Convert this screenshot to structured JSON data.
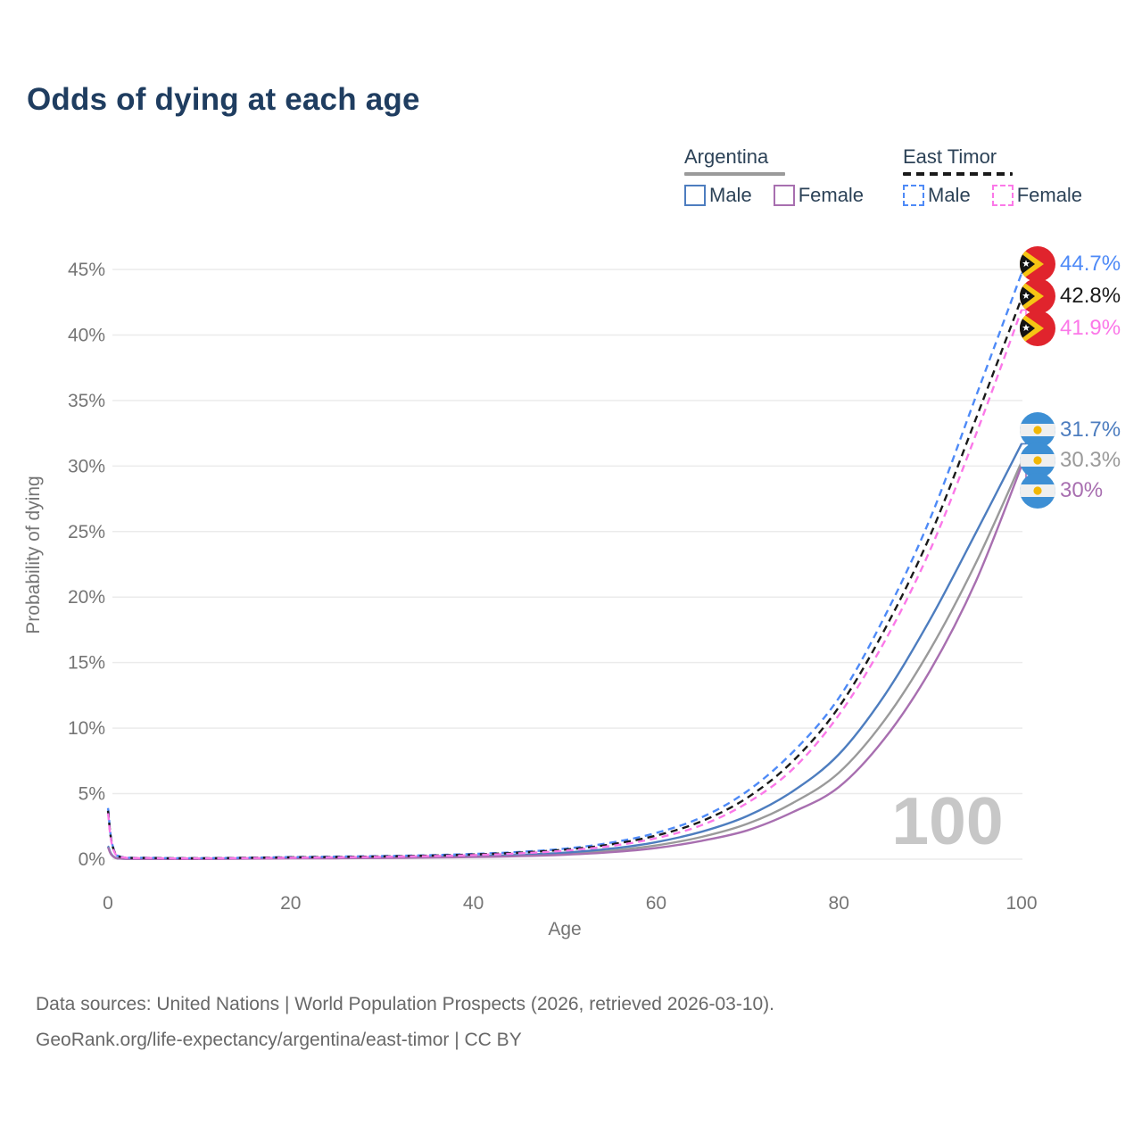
{
  "page": {
    "title": "Odds of dying at each age"
  },
  "legend": {
    "groups": [
      {
        "country": "Argentina",
        "line_style": "solid",
        "underline_color": "#9a9a9a",
        "underline_width": 113,
        "items": [
          {
            "label": "Male",
            "color": "#4d7dbf"
          },
          {
            "label": "Female",
            "color": "#a86fb0"
          }
        ]
      },
      {
        "country": "East Timor",
        "line_style": "dashed",
        "underline_color": "#1a1a1a",
        "underline_width": 123,
        "items": [
          {
            "label": "Male",
            "color": "#4e8af7"
          },
          {
            "label": "Female",
            "color": "#fb78e8"
          }
        ]
      }
    ]
  },
  "chart_data": {
    "type": "line",
    "title": "Odds of dying at each age",
    "xlabel": "Age",
    "ylabel": "Probability of dying",
    "xlim": [
      0,
      100
    ],
    "ylim_pct": [
      0,
      45
    ],
    "xticks": [
      0,
      20,
      40,
      60,
      80,
      100
    ],
    "yticks_pct": [
      0,
      5,
      10,
      15,
      20,
      25,
      30,
      35,
      40,
      45
    ],
    "grid": "horizontal",
    "watermark": "100",
    "ages": [
      0,
      1,
      5,
      10,
      15,
      20,
      25,
      30,
      35,
      40,
      45,
      50,
      55,
      60,
      65,
      70,
      75,
      80,
      85,
      90,
      95,
      100
    ],
    "series": [
      {
        "name": "Argentina both sexes",
        "country": "Argentina",
        "sex": "both",
        "color": "#9a9a9a",
        "dashed": false,
        "end_label": "30.3%",
        "values_pct": [
          0.95,
          0.06,
          0.03,
          0.02,
          0.05,
          0.08,
          0.1,
          0.11,
          0.14,
          0.19,
          0.27,
          0.41,
          0.65,
          1.05,
          1.7,
          2.7,
          4.3,
          6.6,
          10.6,
          16.0,
          22.6,
          30.3
        ]
      },
      {
        "name": "Argentina male",
        "country": "Argentina",
        "sex": "male",
        "color": "#4d7dbf",
        "dashed": false,
        "end_label": "31.7%",
        "values_pct": [
          1.0,
          0.07,
          0.03,
          0.03,
          0.06,
          0.1,
          0.12,
          0.13,
          0.16,
          0.22,
          0.33,
          0.5,
          0.8,
          1.3,
          2.1,
          3.3,
          5.2,
          8.0,
          12.5,
          18.3,
          24.9,
          31.7
        ]
      },
      {
        "name": "Argentina female",
        "country": "Argentina",
        "sex": "female",
        "color": "#a86fb0",
        "dashed": false,
        "end_label": "30%",
        "values_pct": [
          0.9,
          0.06,
          0.02,
          0.02,
          0.04,
          0.06,
          0.07,
          0.09,
          0.12,
          0.16,
          0.23,
          0.34,
          0.53,
          0.85,
          1.4,
          2.2,
          3.6,
          5.5,
          9.2,
          14.4,
          21.2,
          30.0
        ]
      },
      {
        "name": "East Timor male",
        "country": "East Timor",
        "sex": "male",
        "color": "#4e8af7",
        "dashed": true,
        "end_label": "44.7%",
        "values_pct": [
          3.9,
          0.28,
          0.1,
          0.08,
          0.11,
          0.16,
          0.2,
          0.24,
          0.3,
          0.4,
          0.55,
          0.8,
          1.25,
          2.0,
          3.2,
          5.2,
          8.2,
          12.3,
          18.5,
          26.0,
          35.3,
          44.7
        ]
      },
      {
        "name": "East Timor both sexes",
        "country": "East Timor",
        "sex": "both",
        "color": "#1a1a1a",
        "dashed": true,
        "end_label": "42.8%",
        "values_pct": [
          3.7,
          0.26,
          0.09,
          0.07,
          0.1,
          0.14,
          0.17,
          0.21,
          0.27,
          0.36,
          0.5,
          0.73,
          1.12,
          1.8,
          2.9,
          4.7,
          7.5,
          11.6,
          17.5,
          24.7,
          33.6,
          42.8
        ]
      },
      {
        "name": "East Timor female",
        "country": "East Timor",
        "sex": "female",
        "color": "#fb78e8",
        "dashed": true,
        "end_label": "41.9%",
        "values_pct": [
          3.5,
          0.24,
          0.08,
          0.06,
          0.08,
          0.11,
          0.14,
          0.18,
          0.23,
          0.31,
          0.44,
          0.65,
          1.0,
          1.6,
          2.6,
          4.3,
          6.9,
          11.0,
          16.6,
          23.6,
          32.4,
          41.9
        ]
      }
    ]
  },
  "footer": {
    "line1": "Data sources: United Nations | World Population Prospects (2026, retrieved 2026-03-10).",
    "line2": "GeoRank.org/life-expectancy/argentina/east-timor | CC BY"
  }
}
